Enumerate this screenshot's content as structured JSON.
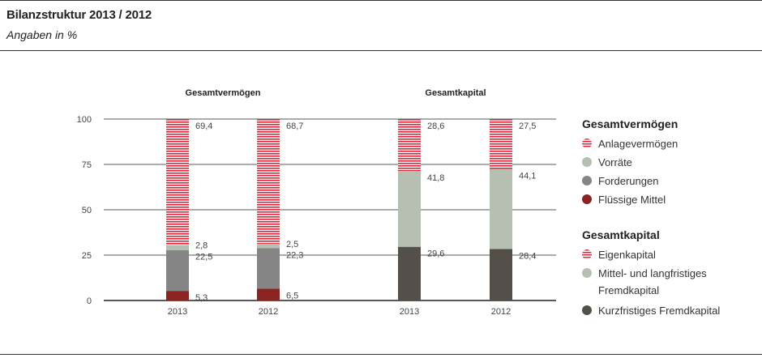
{
  "header": {
    "title": "Bilanzstruktur 2013 / 2012",
    "subtitle": "Angaben in %"
  },
  "chart_data": {
    "type": "bar",
    "stacked": true,
    "ylim": [
      0,
      100
    ],
    "yticks": [
      "0",
      "25",
      "50",
      "75",
      "100"
    ],
    "grid": true,
    "groups": [
      {
        "title": "Gesamtvermögen",
        "categories": [
          "2013",
          "2012"
        ],
        "series": [
          {
            "name": "Flüssige Mittel",
            "values": [
              5.3,
              6.5
            ],
            "labels": [
              "5,3",
              "6,5"
            ],
            "color": "#8b2323",
            "pattern": "solid"
          },
          {
            "name": "Forderungen",
            "values": [
              22.5,
              22.3
            ],
            "labels": [
              "22,5",
              "22,3"
            ],
            "color": "#858585",
            "pattern": "solid"
          },
          {
            "name": "Vorräte",
            "values": [
              2.8,
              2.5
            ],
            "labels": [
              "2,8",
              "2,5"
            ],
            "color": "#b5bfb2",
            "pattern": "solid"
          },
          {
            "name": "Anlagevermögen",
            "values": [
              69.4,
              68.7
            ],
            "labels": [
              "69,4",
              "68,7"
            ],
            "color": "#d9283c",
            "pattern": "stripe"
          }
        ]
      },
      {
        "title": "Gesamtkapital",
        "categories": [
          "2013",
          "2012"
        ],
        "series": [
          {
            "name": "Kurzfristiges Fremdkapital",
            "values": [
              29.6,
              28.4
            ],
            "labels": [
              "29,6",
              "28,4"
            ],
            "color": "#545049",
            "pattern": "solid"
          },
          {
            "name": "Mittel- und langfristiges Fremdkapital",
            "values": [
              41.8,
              44.1
            ],
            "labels": [
              "41,8",
              "44,1"
            ],
            "color": "#b5bfb2",
            "pattern": "solid"
          },
          {
            "name": "Eigenkapital",
            "values": [
              28.6,
              27.5
            ],
            "labels": [
              "28,6",
              "27,5"
            ],
            "color": "#d9283c",
            "pattern": "stripe"
          }
        ]
      }
    ]
  },
  "legend": {
    "sections": [
      {
        "title": "Gesamtvermögen",
        "items": [
          {
            "label": "Anlagevermögen",
            "color": "#d9283c",
            "pattern": "stripe"
          },
          {
            "label": "Vorräte",
            "color": "#b5bfb2",
            "pattern": "solid"
          },
          {
            "label": "Forderungen",
            "color": "#858585",
            "pattern": "solid"
          },
          {
            "label": "Flüssige Mittel",
            "color": "#8b2323",
            "pattern": "solid"
          }
        ]
      },
      {
        "title": "Gesamtkapital",
        "items": [
          {
            "label": "Eigenkapital",
            "color": "#d9283c",
            "pattern": "stripe"
          },
          {
            "label": "Mittel- und langfristiges Fremdkapital",
            "color": "#b5bfb2",
            "pattern": "solid"
          },
          {
            "label": "Kurzfristiges Fremdkapital",
            "color": "#545049",
            "pattern": "solid"
          }
        ]
      }
    ]
  }
}
